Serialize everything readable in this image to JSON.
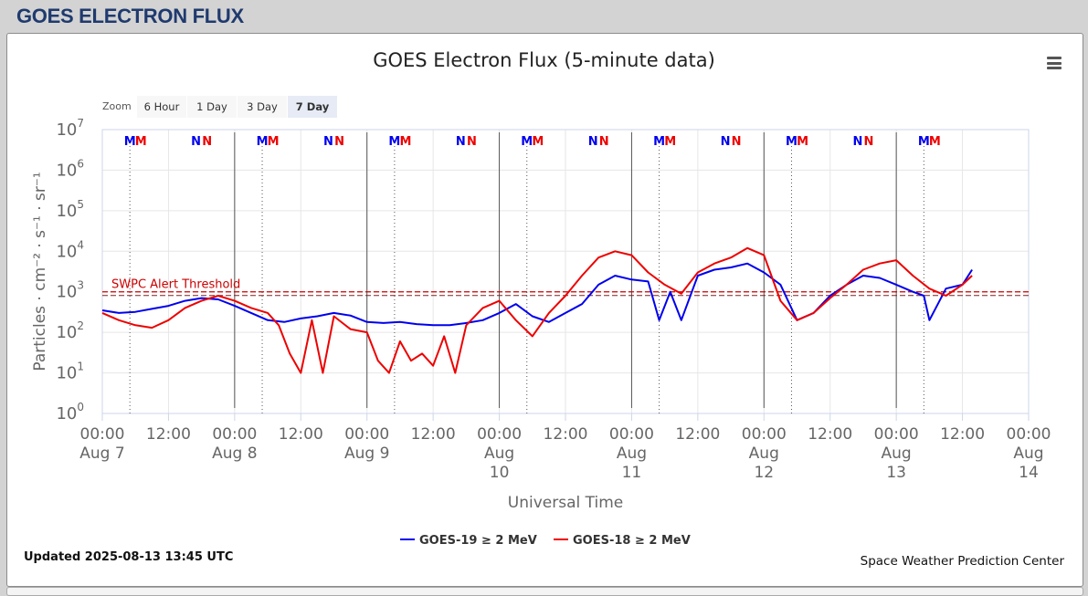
{
  "page": {
    "header_title": "GOES ELECTRON FLUX"
  },
  "toolbar": {
    "zoom_label": "Zoom",
    "zoom_buttons": [
      "6 Hour",
      "1 Day",
      "3 Day",
      "7 Day"
    ],
    "active_zoom": "7 Day"
  },
  "footer": {
    "updated": "Updated 2025-08-13 13:45 UTC",
    "credits": "Space Weather Prediction Center"
  },
  "chart_data": {
    "type": "line",
    "title": "GOES Electron Flux (5-minute data)",
    "xlabel": "Universal Time",
    "ylabel": "Particles · cm⁻² · s⁻¹ · sr⁻¹",
    "y_scale": "log",
    "ylim": [
      1,
      10000000
    ],
    "y_ticks": [
      {
        "value": 1,
        "base": "10",
        "exp": "0"
      },
      {
        "value": 10,
        "base": "10",
        "exp": "1"
      },
      {
        "value": 100,
        "base": "10",
        "exp": "2"
      },
      {
        "value": 1000,
        "base": "10",
        "exp": "3"
      },
      {
        "value": 10000,
        "base": "10",
        "exp": "4"
      },
      {
        "value": 100000,
        "base": "10",
        "exp": "5"
      },
      {
        "value": 1000000,
        "base": "10",
        "exp": "6"
      },
      {
        "value": 10000000,
        "base": "10",
        "exp": "7"
      }
    ],
    "xlim": [
      "2025-08-07 00:00",
      "2025-08-14 00:00"
    ],
    "x_ticks": [
      {
        "x": "2025-08-07 00:00",
        "time": "00:00",
        "date": "Aug 7"
      },
      {
        "x": "2025-08-07 12:00",
        "time": "12:00",
        "date": ""
      },
      {
        "x": "2025-08-08 00:00",
        "time": "00:00",
        "date": "Aug 8"
      },
      {
        "x": "2025-08-08 12:00",
        "time": "12:00",
        "date": ""
      },
      {
        "x": "2025-08-09 00:00",
        "time": "00:00",
        "date": "Aug 9"
      },
      {
        "x": "2025-08-09 12:00",
        "time": "12:00",
        "date": ""
      },
      {
        "x": "2025-08-10 00:00",
        "time": "00:00",
        "date": "Aug 10"
      },
      {
        "x": "2025-08-10 12:00",
        "time": "12:00",
        "date": ""
      },
      {
        "x": "2025-08-11 00:00",
        "time": "00:00",
        "date": "Aug 11"
      },
      {
        "x": "2025-08-11 12:00",
        "time": "12:00",
        "date": ""
      },
      {
        "x": "2025-08-12 00:00",
        "time": "00:00",
        "date": "Aug 12"
      },
      {
        "x": "2025-08-12 12:00",
        "time": "12:00",
        "date": ""
      },
      {
        "x": "2025-08-13 00:00",
        "time": "00:00",
        "date": "Aug 13"
      },
      {
        "x": "2025-08-13 12:00",
        "time": "12:00",
        "date": ""
      },
      {
        "x": "2025-08-14 00:00",
        "time": "00:00",
        "date": "Aug 14"
      }
    ],
    "grid": true,
    "legend_position": "bottom-center",
    "threshold": {
      "label": "SWPC Alert Threshold",
      "value": 1000,
      "color": "#cc0000"
    },
    "day_markers": [
      "2025-08-08 00:00",
      "2025-08-09 00:00",
      "2025-08-10 00:00",
      "2025-08-11 00:00",
      "2025-08-12 00:00",
      "2025-08-13 00:00"
    ],
    "orbit_markers": [
      {
        "x": "2025-08-07 05:00",
        "letter": "M",
        "color": "#0000ee",
        "dotted": true
      },
      {
        "x": "2025-08-07 07:00",
        "letter": "M",
        "color": "#ee0000",
        "dotted": false
      },
      {
        "x": "2025-08-07 17:00",
        "letter": "N",
        "color": "#0000ee",
        "dotted": false
      },
      {
        "x": "2025-08-07 19:00",
        "letter": "N",
        "color": "#ee0000",
        "dotted": false
      },
      {
        "x": "2025-08-08 05:00",
        "letter": "M",
        "color": "#0000ee",
        "dotted": true
      },
      {
        "x": "2025-08-08 07:00",
        "letter": "M",
        "color": "#ee0000",
        "dotted": false
      },
      {
        "x": "2025-08-08 17:00",
        "letter": "N",
        "color": "#0000ee",
        "dotted": false
      },
      {
        "x": "2025-08-08 19:00",
        "letter": "N",
        "color": "#ee0000",
        "dotted": false
      },
      {
        "x": "2025-08-09 05:00",
        "letter": "M",
        "color": "#0000ee",
        "dotted": true
      },
      {
        "x": "2025-08-09 07:00",
        "letter": "M",
        "color": "#ee0000",
        "dotted": false
      },
      {
        "x": "2025-08-09 17:00",
        "letter": "N",
        "color": "#0000ee",
        "dotted": false
      },
      {
        "x": "2025-08-09 19:00",
        "letter": "N",
        "color": "#ee0000",
        "dotted": false
      },
      {
        "x": "2025-08-10 05:00",
        "letter": "M",
        "color": "#0000ee",
        "dotted": true
      },
      {
        "x": "2025-08-10 07:00",
        "letter": "M",
        "color": "#ee0000",
        "dotted": false
      },
      {
        "x": "2025-08-10 17:00",
        "letter": "N",
        "color": "#0000ee",
        "dotted": false
      },
      {
        "x": "2025-08-10 19:00",
        "letter": "N",
        "color": "#ee0000",
        "dotted": false
      },
      {
        "x": "2025-08-11 05:00",
        "letter": "M",
        "color": "#0000ee",
        "dotted": true
      },
      {
        "x": "2025-08-11 07:00",
        "letter": "M",
        "color": "#ee0000",
        "dotted": false
      },
      {
        "x": "2025-08-11 17:00",
        "letter": "N",
        "color": "#0000ee",
        "dotted": false
      },
      {
        "x": "2025-08-11 19:00",
        "letter": "N",
        "color": "#ee0000",
        "dotted": false
      },
      {
        "x": "2025-08-12 05:00",
        "letter": "M",
        "color": "#0000ee",
        "dotted": true
      },
      {
        "x": "2025-08-12 07:00",
        "letter": "M",
        "color": "#ee0000",
        "dotted": false
      },
      {
        "x": "2025-08-12 17:00",
        "letter": "N",
        "color": "#0000ee",
        "dotted": false
      },
      {
        "x": "2025-08-12 19:00",
        "letter": "N",
        "color": "#ee0000",
        "dotted": false
      },
      {
        "x": "2025-08-13 05:00",
        "letter": "M",
        "color": "#0000ee",
        "dotted": true
      },
      {
        "x": "2025-08-13 07:00",
        "letter": "M",
        "color": "#ee0000",
        "dotted": false
      }
    ],
    "series": [
      {
        "name": "GOES-19 ≥ 2 MeV",
        "color": "#0000ee",
        "x": [
          "2025-08-07 00:00",
          "2025-08-07 03:00",
          "2025-08-07 06:00",
          "2025-08-07 09:00",
          "2025-08-07 12:00",
          "2025-08-07 15:00",
          "2025-08-07 18:00",
          "2025-08-07 21:00",
          "2025-08-08 00:00",
          "2025-08-08 03:00",
          "2025-08-08 06:00",
          "2025-08-08 09:00",
          "2025-08-08 12:00",
          "2025-08-08 15:00",
          "2025-08-08 18:00",
          "2025-08-08 21:00",
          "2025-08-09 00:00",
          "2025-08-09 03:00",
          "2025-08-09 06:00",
          "2025-08-09 09:00",
          "2025-08-09 12:00",
          "2025-08-09 15:00",
          "2025-08-09 18:00",
          "2025-08-09 21:00",
          "2025-08-10 00:00",
          "2025-08-10 03:00",
          "2025-08-10 06:00",
          "2025-08-10 09:00",
          "2025-08-10 12:00",
          "2025-08-10 15:00",
          "2025-08-10 18:00",
          "2025-08-10 21:00",
          "2025-08-11 00:00",
          "2025-08-11 03:00",
          "2025-08-11 05:00",
          "2025-08-11 07:00",
          "2025-08-11 09:00",
          "2025-08-11 12:00",
          "2025-08-11 15:00",
          "2025-08-11 18:00",
          "2025-08-11 21:00",
          "2025-08-12 00:00",
          "2025-08-12 03:00",
          "2025-08-12 06:00",
          "2025-08-12 09:00",
          "2025-08-12 12:00",
          "2025-08-12 15:00",
          "2025-08-12 18:00",
          "2025-08-12 21:00",
          "2025-08-13 00:00",
          "2025-08-13 03:00",
          "2025-08-13 05:00",
          "2025-08-13 06:00",
          "2025-08-13 09:00",
          "2025-08-13 12:00",
          "2025-08-13 13:45"
        ],
        "values": [
          350,
          300,
          320,
          380,
          450,
          600,
          700,
          650,
          450,
          300,
          200,
          180,
          220,
          250,
          300,
          260,
          180,
          170,
          180,
          160,
          150,
          150,
          170,
          200,
          300,
          500,
          250,
          180,
          300,
          500,
          1500,
          2500,
          2000,
          1800,
          200,
          1000,
          200,
          2500,
          3500,
          4000,
          5000,
          3000,
          1500,
          200,
          300,
          800,
          1500,
          2500,
          2200,
          1500,
          1000,
          800,
          200,
          1200,
          1500,
          3500
        ]
      },
      {
        "name": "GOES-18 ≥ 2 MeV",
        "color": "#ee0000",
        "x": [
          "2025-08-07 00:00",
          "2025-08-07 03:00",
          "2025-08-07 06:00",
          "2025-08-07 09:00",
          "2025-08-07 12:00",
          "2025-08-07 15:00",
          "2025-08-07 18:00",
          "2025-08-07 21:00",
          "2025-08-08 00:00",
          "2025-08-08 03:00",
          "2025-08-08 06:00",
          "2025-08-08 08:00",
          "2025-08-08 10:00",
          "2025-08-08 12:00",
          "2025-08-08 14:00",
          "2025-08-08 16:00",
          "2025-08-08 18:00",
          "2025-08-08 21:00",
          "2025-08-09 00:00",
          "2025-08-09 02:00",
          "2025-08-09 04:00",
          "2025-08-09 06:00",
          "2025-08-09 08:00",
          "2025-08-09 10:00",
          "2025-08-09 12:00",
          "2025-08-09 14:00",
          "2025-08-09 16:00",
          "2025-08-09 18:00",
          "2025-08-09 21:00",
          "2025-08-10 00:00",
          "2025-08-10 03:00",
          "2025-08-10 06:00",
          "2025-08-10 09:00",
          "2025-08-10 12:00",
          "2025-08-10 15:00",
          "2025-08-10 18:00",
          "2025-08-10 21:00",
          "2025-08-11 00:00",
          "2025-08-11 03:00",
          "2025-08-11 06:00",
          "2025-08-11 09:00",
          "2025-08-11 12:00",
          "2025-08-11 15:00",
          "2025-08-11 18:00",
          "2025-08-11 21:00",
          "2025-08-12 00:00",
          "2025-08-12 03:00",
          "2025-08-12 06:00",
          "2025-08-12 09:00",
          "2025-08-12 12:00",
          "2025-08-12 15:00",
          "2025-08-12 18:00",
          "2025-08-12 21:00",
          "2025-08-13 00:00",
          "2025-08-13 03:00",
          "2025-08-13 06:00",
          "2025-08-13 09:00",
          "2025-08-13 12:00",
          "2025-08-13 13:45"
        ],
        "values": [
          300,
          200,
          150,
          130,
          200,
          400,
          600,
          800,
          600,
          400,
          300,
          150,
          30,
          10,
          200,
          10,
          250,
          120,
          100,
          20,
          10,
          60,
          20,
          30,
          15,
          80,
          10,
          150,
          400,
          600,
          200,
          80,
          300,
          800,
          2500,
          7000,
          10000,
          8000,
          3000,
          1500,
          900,
          3000,
          5000,
          7000,
          12000,
          8000,
          600,
          200,
          300,
          700,
          1500,
          3500,
          5000,
          6000,
          2500,
          1200,
          800,
          1500,
          2500
        ]
      }
    ]
  }
}
